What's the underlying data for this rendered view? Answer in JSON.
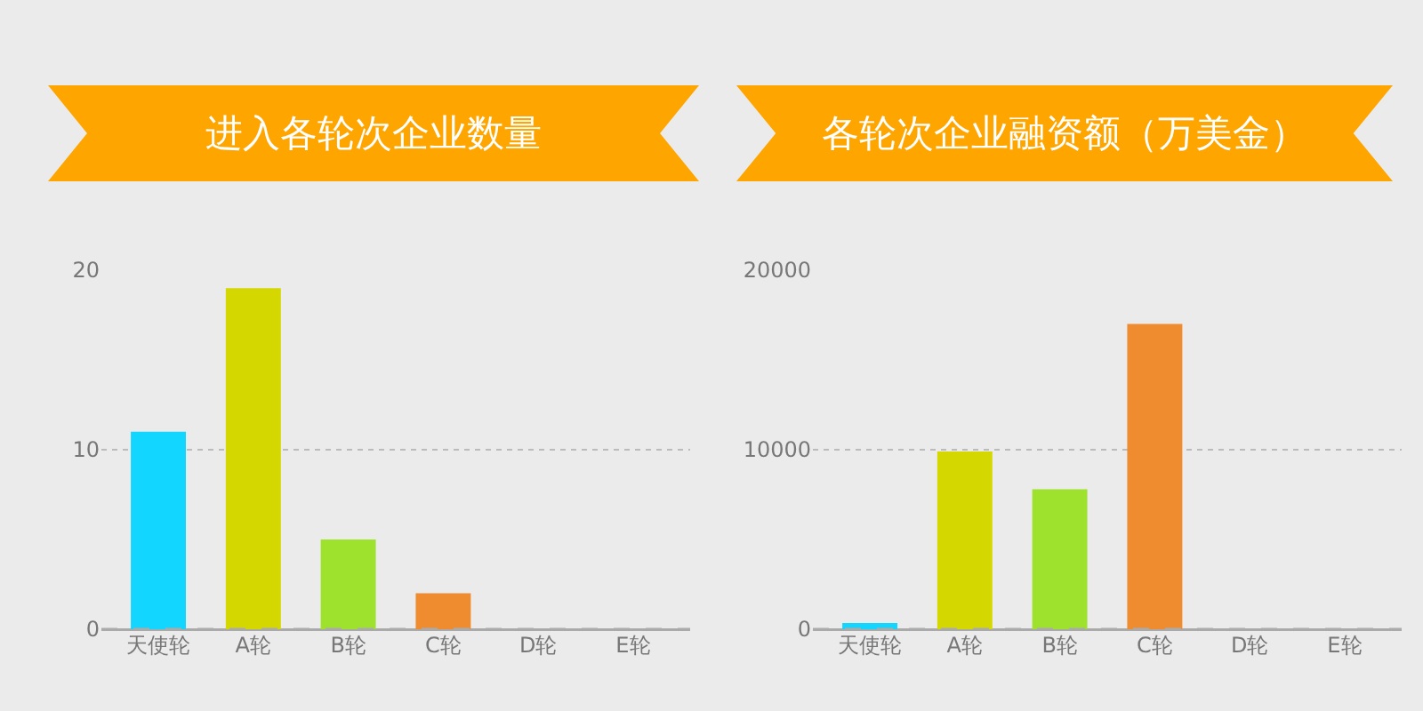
{
  "chart_data": [
    {
      "type": "bar",
      "title": "进入各轮次企业数量",
      "categories": [
        "天使轮",
        "A轮",
        "B轮",
        "C轮",
        "D轮",
        "E轮"
      ],
      "values": [
        11,
        19,
        5,
        2,
        0,
        0
      ],
      "colors": [
        "#12d6ff",
        "#d4d700",
        "#9ee22e",
        "#f08c30",
        "#6ab8e0",
        "#e874c8"
      ],
      "ylim": [
        0,
        20
      ],
      "yticks": [
        0,
        10,
        20
      ],
      "grid": "y"
    },
    {
      "type": "bar",
      "title": "各轮次企业融资额（万美金）",
      "categories": [
        "天使轮",
        "A轮",
        "B轮",
        "C轮",
        "D轮",
        "E轮"
      ],
      "values": [
        350,
        9900,
        7800,
        17000,
        0,
        0
      ],
      "colors": [
        "#12d6ff",
        "#d4d700",
        "#9ee22e",
        "#f08c30",
        "#6ab8e0",
        "#e874c8"
      ],
      "ylim": [
        0,
        20000
      ],
      "yticks": [
        0,
        10000,
        20000
      ],
      "grid": "y"
    }
  ]
}
